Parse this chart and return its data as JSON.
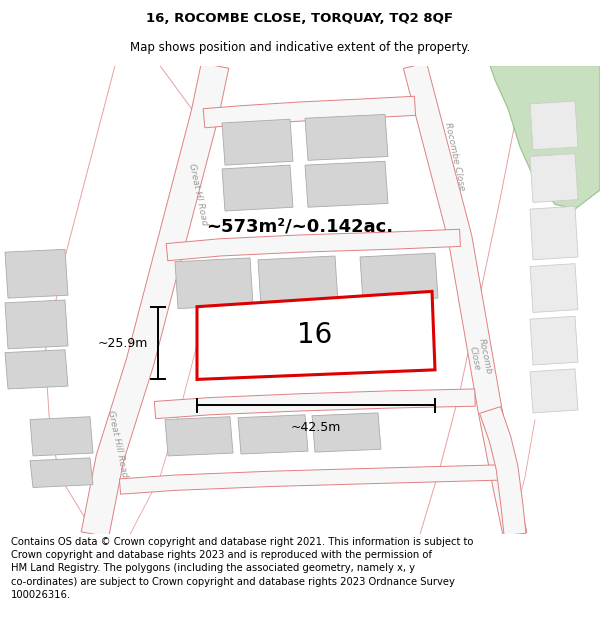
{
  "title": "16, ROCOMBE CLOSE, TORQUAY, TQ2 8QF",
  "subtitle": "Map shows position and indicative extent of the property.",
  "footer": "Contains OS data © Crown copyright and database right 2021. This information is subject to\nCrown copyright and database rights 2023 and is reproduced with the permission of\nHM Land Registry. The polygons (including the associated geometry, namely x, y\nco-ordinates) are subject to Crown copyright and database rights 2023 Ordnance Survey\n100026316.",
  "bg_color": "#ffffff",
  "title_fontsize": 9.5,
  "subtitle_fontsize": 8.5,
  "footer_fontsize": 7.2,
  "area_label": "~573m²/~0.142ac.",
  "number_label": "16",
  "width_label": "~42.5m",
  "height_label": "~25.9m",
  "road_line_color": "#e88888",
  "road_fill_color": "#f5f5f5",
  "building_color": "#d4d4d4",
  "building_border": "#aaaaaa",
  "green_color": "#c8dfc0",
  "green_border": "#9dbf90",
  "highlight_color": "#dd0000",
  "street_label_color": "#999999",
  "dim_color": "#000000",
  "map_xlim": [
    0,
    600
  ],
  "map_ylim": [
    0,
    490
  ]
}
